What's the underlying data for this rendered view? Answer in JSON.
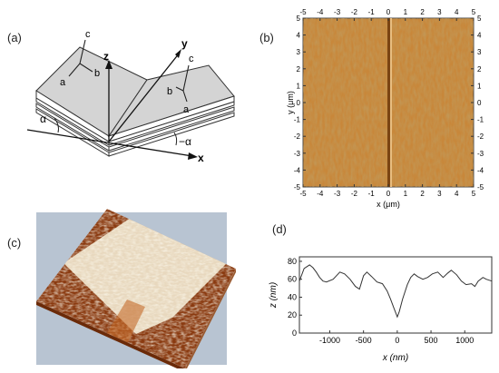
{
  "panels": {
    "a": {
      "label": "(a)",
      "axes": {
        "x": "x",
        "y": "y",
        "z": "z"
      },
      "left_crystal": {
        "a": "a",
        "b": "b",
        "c": "c"
      },
      "right_crystal": {
        "a": "a",
        "b": "b",
        "c": "c"
      },
      "angle_left": "α",
      "angle_right": "−α"
    },
    "b": {
      "label": "(b)",
      "xlabel": "x (μm)",
      "ylabel": "y (μm)",
      "x_ticks": [
        "-5",
        "-4",
        "-3",
        "-2",
        "-1",
        "0",
        "1",
        "2",
        "3",
        "4",
        "5"
      ],
      "y_ticks": [
        "5",
        "4",
        "3",
        "2",
        "1",
        "0",
        "-1",
        "-2",
        "-3",
        "-4",
        "-5"
      ],
      "colors": {
        "base": "#c8873a",
        "light": "#e6b472",
        "dark": "#8a5219"
      }
    },
    "c": {
      "label": "(c)",
      "colors": {
        "background": "#b8c4d2",
        "dark": "#8a3a10",
        "light": "#f2ead2"
      }
    },
    "d": {
      "label": "(d)",
      "ylabel": "z (nm)",
      "xlabel": "x (nm)"
    }
  },
  "chart_data": {
    "type": "line",
    "title": "",
    "xlabel": "x (nm)",
    "ylabel": "z (nm)",
    "xlim": [
      -1450,
      1400
    ],
    "ylim": [
      0,
      85
    ],
    "x_ticks": [
      -1000,
      -500,
      0,
      500,
      1000
    ],
    "y_ticks": [
      0,
      20,
      40,
      60,
      80
    ],
    "x": [
      -1450,
      -1380,
      -1300,
      -1250,
      -1200,
      -1150,
      -1100,
      -1050,
      -950,
      -850,
      -780,
      -700,
      -620,
      -560,
      -500,
      -450,
      -380,
      -300,
      -220,
      -150,
      -100,
      -50,
      0,
      30,
      80,
      150,
      200,
      250,
      300,
      380,
      450,
      520,
      600,
      680,
      750,
      800,
      880,
      950,
      1020,
      1100,
      1150,
      1200,
      1270,
      1320,
      1400
    ],
    "y": [
      58,
      72,
      76,
      73,
      68,
      62,
      58,
      57,
      60,
      68,
      66,
      60,
      52,
      49,
      64,
      68,
      63,
      57,
      55,
      47,
      38,
      28,
      18,
      24,
      38,
      54,
      62,
      66,
      63,
      60,
      62,
      66,
      68,
      62,
      67,
      70,
      65,
      58,
      54,
      55,
      52,
      58,
      62,
      60,
      58
    ],
    "grid": false
  }
}
